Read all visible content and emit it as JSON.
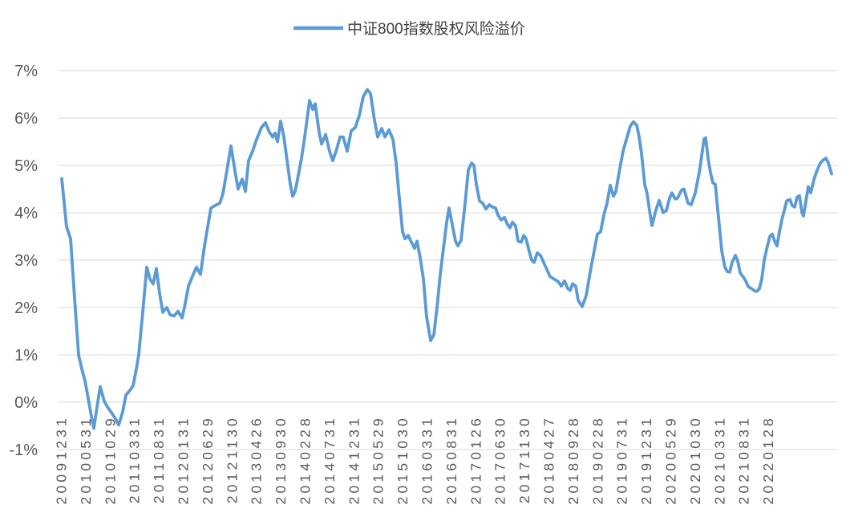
{
  "legend": {
    "label": "中证800指数股权风险溢价"
  },
  "chart_data": {
    "type": "line",
    "title": "",
    "legend_position": "top-center",
    "grid": "horizontal",
    "line_color": "#5B9BD5",
    "grid_color": "#D9D9D9",
    "axis_text_color": "#595959",
    "background_color": "#FFFFFF",
    "ylabel": "",
    "xlabel": "",
    "y_axis": {
      "min": -1,
      "max": 7,
      "tick_step": 1,
      "unit": "%",
      "tick_labels": [
        "7%",
        "6%",
        "5%",
        "4%",
        "3%",
        "2%",
        "1%",
        "0%",
        "-1%"
      ]
    },
    "x_axis": {
      "tick_labels": [
        "20091231",
        "20100531",
        "20101029",
        "20110331",
        "20110831",
        "20120131",
        "20120629",
        "20121130",
        "20130426",
        "20130930",
        "20140228",
        "20140731",
        "20141231",
        "20150529",
        "20151030",
        "20160331",
        "20160831",
        "20170126",
        "20170630",
        "20171130",
        "20180427",
        "20180928",
        "20190228",
        "20190731",
        "20191231",
        "20200529",
        "20201030",
        "20210331",
        "20210831",
        "20220128"
      ],
      "labels_rotated_degrees": -90
    },
    "points_x_unit": "fraction_of_series_span",
    "value_unit": "percent",
    "series": [
      {
        "name": "中证800指数股权风险溢价",
        "points": [
          [
            0.0,
            4.72
          ],
          [
            0.0063,
            3.7
          ],
          [
            0.0115,
            3.45
          ],
          [
            0.0167,
            2.2
          ],
          [
            0.0219,
            1.0
          ],
          [
            0.026,
            0.7
          ],
          [
            0.0302,
            0.45
          ],
          [
            0.0344,
            0.08
          ],
          [
            0.0385,
            -0.3
          ],
          [
            0.0417,
            -0.55
          ],
          [
            0.0458,
            -0.1
          ],
          [
            0.05,
            0.33
          ],
          [
            0.0552,
            0.02
          ],
          [
            0.0594,
            -0.1
          ],
          [
            0.0646,
            -0.22
          ],
          [
            0.0698,
            -0.35
          ],
          [
            0.074,
            -0.48
          ],
          [
            0.0792,
            -0.2
          ],
          [
            0.0833,
            0.15
          ],
          [
            0.0885,
            0.25
          ],
          [
            0.0927,
            0.35
          ],
          [
            0.0969,
            0.7
          ],
          [
            0.1,
            1.0
          ],
          [
            0.1052,
            1.9
          ],
          [
            0.1104,
            2.85
          ],
          [
            0.1146,
            2.6
          ],
          [
            0.1188,
            2.5
          ],
          [
            0.1229,
            2.82
          ],
          [
            0.1271,
            2.3
          ],
          [
            0.1313,
            1.9
          ],
          [
            0.1365,
            2.0
          ],
          [
            0.1406,
            1.85
          ],
          [
            0.1458,
            1.82
          ],
          [
            0.151,
            1.92
          ],
          [
            0.1563,
            1.78
          ],
          [
            0.1594,
            2.0
          ],
          [
            0.1646,
            2.45
          ],
          [
            0.1708,
            2.7
          ],
          [
            0.175,
            2.85
          ],
          [
            0.1802,
            2.7
          ],
          [
            0.1854,
            3.3
          ],
          [
            0.1885,
            3.6
          ],
          [
            0.1938,
            4.1
          ],
          [
            0.199,
            4.15
          ],
          [
            0.2052,
            4.2
          ],
          [
            0.2094,
            4.4
          ],
          [
            0.2146,
            4.9
          ],
          [
            0.2198,
            5.41
          ],
          [
            0.225,
            4.88
          ],
          [
            0.2292,
            4.5
          ],
          [
            0.2344,
            4.71
          ],
          [
            0.2385,
            4.45
          ],
          [
            0.2427,
            5.1
          ],
          [
            0.2479,
            5.3
          ],
          [
            0.2531,
            5.55
          ],
          [
            0.2594,
            5.8
          ],
          [
            0.2646,
            5.9
          ],
          [
            0.2698,
            5.7
          ],
          [
            0.274,
            5.6
          ],
          [
            0.2771,
            5.68
          ],
          [
            0.2802,
            5.5
          ],
          [
            0.2844,
            5.93
          ],
          [
            0.2885,
            5.6
          ],
          [
            0.2927,
            5.1
          ],
          [
            0.2969,
            4.6
          ],
          [
            0.3,
            4.35
          ],
          [
            0.3031,
            4.45
          ],
          [
            0.3063,
            4.7
          ],
          [
            0.3115,
            5.15
          ],
          [
            0.3156,
            5.6
          ],
          [
            0.3219,
            6.37
          ],
          [
            0.326,
            6.18
          ],
          [
            0.3292,
            6.3
          ],
          [
            0.3344,
            5.7
          ],
          [
            0.3375,
            5.45
          ],
          [
            0.3427,
            5.65
          ],
          [
            0.3479,
            5.3
          ],
          [
            0.3521,
            5.1
          ],
          [
            0.3573,
            5.35
          ],
          [
            0.3615,
            5.6
          ],
          [
            0.3656,
            5.6
          ],
          [
            0.3708,
            5.3
          ],
          [
            0.376,
            5.73
          ],
          [
            0.3813,
            5.8
          ],
          [
            0.3865,
            6.05
          ],
          [
            0.3917,
            6.45
          ],
          [
            0.3969,
            6.6
          ],
          [
            0.401,
            6.52
          ],
          [
            0.4063,
            5.95
          ],
          [
            0.4104,
            5.6
          ],
          [
            0.4156,
            5.78
          ],
          [
            0.4198,
            5.6
          ],
          [
            0.425,
            5.75
          ],
          [
            0.4302,
            5.55
          ],
          [
            0.4344,
            5.05
          ],
          [
            0.4385,
            4.3
          ],
          [
            0.4427,
            3.6
          ],
          [
            0.4458,
            3.45
          ],
          [
            0.45,
            3.52
          ],
          [
            0.4542,
            3.38
          ],
          [
            0.4583,
            3.25
          ],
          [
            0.4615,
            3.4
          ],
          [
            0.4656,
            3.05
          ],
          [
            0.4698,
            2.6
          ],
          [
            0.474,
            1.8
          ],
          [
            0.4792,
            1.3
          ],
          [
            0.4833,
            1.42
          ],
          [
            0.4875,
            2.0
          ],
          [
            0.4917,
            2.7
          ],
          [
            0.4958,
            3.25
          ],
          [
            0.5,
            3.8
          ],
          [
            0.5031,
            4.1
          ],
          [
            0.5073,
            3.75
          ],
          [
            0.5115,
            3.4
          ],
          [
            0.5146,
            3.3
          ],
          [
            0.5188,
            3.42
          ],
          [
            0.524,
            4.2
          ],
          [
            0.5281,
            4.9
          ],
          [
            0.5323,
            5.05
          ],
          [
            0.5354,
            5.0
          ],
          [
            0.5385,
            4.6
          ],
          [
            0.5427,
            4.25
          ],
          [
            0.5469,
            4.2
          ],
          [
            0.551,
            4.08
          ],
          [
            0.5552,
            4.17
          ],
          [
            0.5594,
            4.12
          ],
          [
            0.5635,
            4.1
          ],
          [
            0.5667,
            3.95
          ],
          [
            0.5708,
            3.85
          ],
          [
            0.575,
            3.9
          ],
          [
            0.5792,
            3.75
          ],
          [
            0.5823,
            3.68
          ],
          [
            0.5854,
            3.8
          ],
          [
            0.5896,
            3.72
          ],
          [
            0.5927,
            3.4
          ],
          [
            0.5969,
            3.38
          ],
          [
            0.6,
            3.52
          ],
          [
            0.6031,
            3.45
          ],
          [
            0.6073,
            3.18
          ],
          [
            0.6104,
            3.0
          ],
          [
            0.6135,
            2.95
          ],
          [
            0.6177,
            3.15
          ],
          [
            0.6219,
            3.1
          ],
          [
            0.626,
            2.95
          ],
          [
            0.6302,
            2.8
          ],
          [
            0.6344,
            2.65
          ],
          [
            0.6396,
            2.6
          ],
          [
            0.6448,
            2.55
          ],
          [
            0.649,
            2.45
          ],
          [
            0.6531,
            2.56
          ],
          [
            0.6573,
            2.4
          ],
          [
            0.6604,
            2.36
          ],
          [
            0.6635,
            2.5
          ],
          [
            0.6677,
            2.45
          ],
          [
            0.6708,
            2.15
          ],
          [
            0.676,
            2.02
          ],
          [
            0.6813,
            2.25
          ],
          [
            0.6865,
            2.75
          ],
          [
            0.6917,
            3.2
          ],
          [
            0.6958,
            3.55
          ],
          [
            0.7,
            3.6
          ],
          [
            0.7042,
            3.95
          ],
          [
            0.7083,
            4.2
          ],
          [
            0.7125,
            4.58
          ],
          [
            0.7167,
            4.35
          ],
          [
            0.7198,
            4.45
          ],
          [
            0.724,
            4.85
          ],
          [
            0.7292,
            5.3
          ],
          [
            0.7344,
            5.6
          ],
          [
            0.7385,
            5.83
          ],
          [
            0.7427,
            5.92
          ],
          [
            0.7469,
            5.85
          ],
          [
            0.75,
            5.6
          ],
          [
            0.7531,
            5.25
          ],
          [
            0.7573,
            4.6
          ],
          [
            0.7604,
            4.4
          ],
          [
            0.7635,
            4.05
          ],
          [
            0.7667,
            3.73
          ],
          [
            0.7719,
            4.06
          ],
          [
            0.776,
            4.26
          ],
          [
            0.7813,
            4.0
          ],
          [
            0.7854,
            4.05
          ],
          [
            0.7896,
            4.31
          ],
          [
            0.7927,
            4.42
          ],
          [
            0.7969,
            4.29
          ],
          [
            0.8,
            4.31
          ],
          [
            0.8052,
            4.48
          ],
          [
            0.8083,
            4.5
          ],
          [
            0.8135,
            4.2
          ],
          [
            0.8177,
            4.17
          ],
          [
            0.8229,
            4.42
          ],
          [
            0.8281,
            4.85
          ],
          [
            0.8313,
            5.2
          ],
          [
            0.8344,
            5.56
          ],
          [
            0.8365,
            5.58
          ],
          [
            0.8396,
            5.15
          ],
          [
            0.8427,
            4.85
          ],
          [
            0.8458,
            4.63
          ],
          [
            0.849,
            4.6
          ],
          [
            0.8531,
            3.9
          ],
          [
            0.8573,
            3.2
          ],
          [
            0.8615,
            2.85
          ],
          [
            0.8646,
            2.76
          ],
          [
            0.8677,
            2.75
          ],
          [
            0.8708,
            2.95
          ],
          [
            0.875,
            3.1
          ],
          [
            0.8781,
            2.98
          ],
          [
            0.8813,
            2.73
          ],
          [
            0.8854,
            2.64
          ],
          [
            0.8885,
            2.56
          ],
          [
            0.8917,
            2.44
          ],
          [
            0.8958,
            2.4
          ],
          [
            0.9,
            2.35
          ],
          [
            0.9031,
            2.34
          ],
          [
            0.9063,
            2.4
          ],
          [
            0.9094,
            2.6
          ],
          [
            0.9125,
            3.0
          ],
          [
            0.9167,
            3.3
          ],
          [
            0.9198,
            3.5
          ],
          [
            0.9229,
            3.55
          ],
          [
            0.926,
            3.4
          ],
          [
            0.9292,
            3.3
          ],
          [
            0.9323,
            3.6
          ],
          [
            0.9354,
            3.85
          ],
          [
            0.9385,
            4.05
          ],
          [
            0.9417,
            4.25
          ],
          [
            0.9458,
            4.28
          ],
          [
            0.949,
            4.15
          ],
          [
            0.9521,
            4.12
          ],
          [
            0.9552,
            4.33
          ],
          [
            0.9583,
            4.36
          ],
          [
            0.9615,
            4.0
          ],
          [
            0.9635,
            3.93
          ],
          [
            0.9667,
            4.25
          ],
          [
            0.9698,
            4.55
          ],
          [
            0.9729,
            4.42
          ],
          [
            0.9771,
            4.7
          ],
          [
            0.9813,
            4.9
          ],
          [
            0.9854,
            5.05
          ],
          [
            0.9896,
            5.12
          ],
          [
            0.9927,
            5.15
          ],
          [
            0.9958,
            5.05
          ],
          [
            1.0,
            4.82
          ]
        ]
      }
    ]
  }
}
